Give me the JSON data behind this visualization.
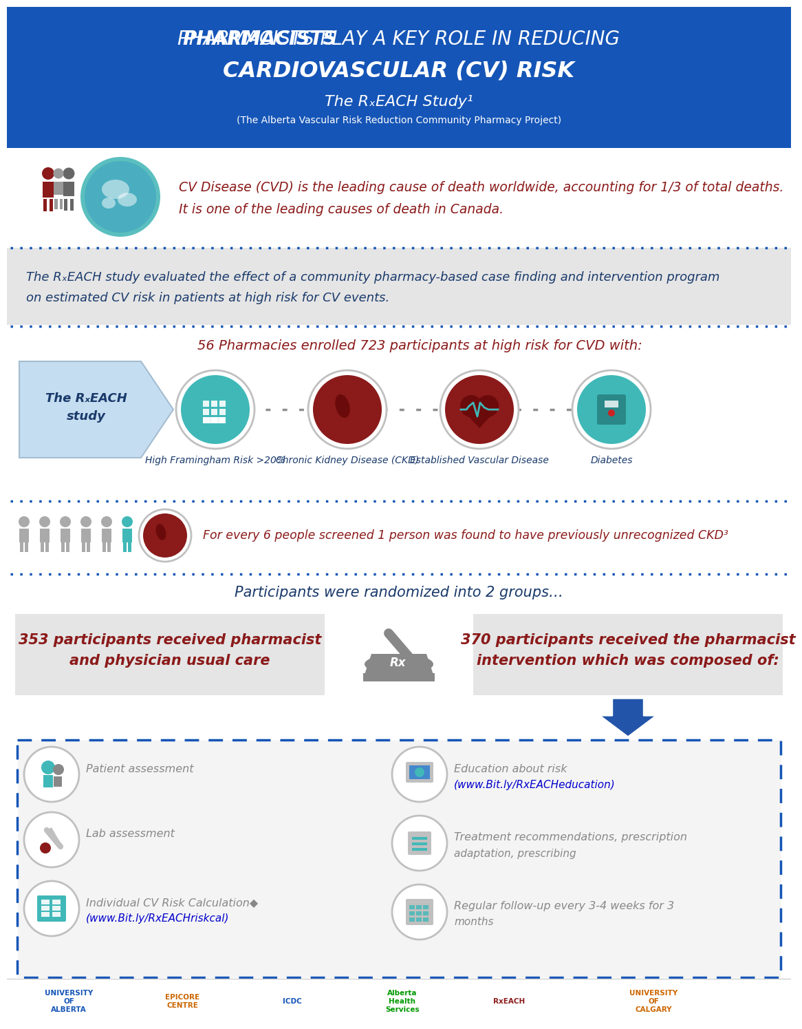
{
  "header_bg": "#1555b7",
  "header_title_bold": "PHARMACISTS",
  "header_title_rest": " PLAY A KEY ROLE IN REDUCING",
  "header_subtitle": "CARDIOVASCULAR (CV) RISK",
  "header_study": "The RₓEACH Study¹",
  "header_project": "(The Alberta Vascular Risk Reduction Community Pharmacy Project)",
  "cvd_line1": "CV Disease (CVD) is the leading cause of death worldwide, accounting for 1/3 of total deaths.",
  "cvd_line2": "It is one of the leading causes of death in Canada.",
  "cvd_color": "#8b1a1a",
  "study_desc_line1": "The RₓEACH study evaluated the effect of a community pharmacy-based case finding and intervention program",
  "study_desc_line2": "on estimated CV risk in patients at high risk for CV events.",
  "study_desc_color": "#1a3a6b",
  "enrolled": "56 Pharmacies enrolled 723 participants at high risk for CVD with:",
  "enrolled_color": "#8b1a1a",
  "arrow_label": "The RₓEACH\nstudy",
  "arrow_label_color": "#1a3a6b",
  "icon_labels": [
    "High Framingham Risk >20%",
    "Chronic Kidney Disease (CKD)",
    "Established Vascular Disease",
    "Diabetes"
  ],
  "icon_label_color": "#1a3a6b",
  "ckd_line": "For every 6 people screened 1 person was found to have previously unrecognized CKD³",
  "ckd_color": "#8b1a1a",
  "rand_text": "Participants were randomized into 2 groups…",
  "rand_color": "#1a3a6b",
  "g1_line1": "353 participants received pharmacist",
  "g1_line2": "and physician usual care",
  "g1_color": "#8b1a1a",
  "g2_line1": "370 participants received the pharmacist",
  "g2_line2": "intervention which was composed of:",
  "g2_color": "#8b1a1a",
  "int_left_items": [
    {
      "line1": "Patient assessment",
      "line2": "",
      "link": false
    },
    {
      "line1": "Lab assessment",
      "line2": "",
      "link": false
    },
    {
      "line1": "Individual CV Risk Calculation◆",
      "line2": "(www.Bit.ly/RxEACHriskcal)",
      "link": true
    }
  ],
  "int_right_items": [
    {
      "line1": "Education about risk",
      "line2": "(www.Bit.ly/RxEACHeducation)",
      "link": true
    },
    {
      "line1": "Treatment recommendations, prescription",
      "line2": "adaptation, prescribing",
      "link": false
    },
    {
      "line1": "Regular follow-up every 3-4 weeks for 3",
      "line2": "months",
      "link": false
    }
  ],
  "int_text_color": "#888888",
  "int_link_color": "#0000cd",
  "dotted_color": "#1555b7",
  "teal": "#40b8b8",
  "dark_red": "#8b1a1a",
  "dark_blue": "#1a3a6b",
  "gray_bg": "#e8e8e8",
  "int_bg": "#f5f5f5"
}
